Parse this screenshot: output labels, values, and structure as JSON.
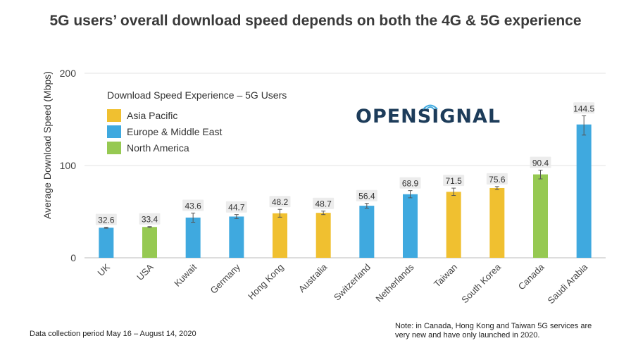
{
  "title": "5G users’ overall download speed depends on both the 4G & 5G experience",
  "footer_left": "Data collection period May 16 – August 14, 2020",
  "footer_right_line1": "Note: in Canada, Hong Kong and Taiwan 5G services are",
  "footer_right_line2": "very new and have only launched in 2020.",
  "logo_text": "OPENSIGNAL",
  "legend": {
    "title": "Download Speed Experience – 5G Users",
    "items": [
      {
        "label": "Asia Pacific",
        "color": "#F0C030"
      },
      {
        "label": "Europe & Middle East",
        "color": "#3FA9DF"
      },
      {
        "label": "North America",
        "color": "#96C952"
      }
    ]
  },
  "chart_data": {
    "type": "bar",
    "title": "5G users’ overall download speed depends on both the 4G & 5G experience",
    "ylabel": "Average Download Speed (Mbps)",
    "xlabel": "",
    "ylim": [
      0,
      200
    ],
    "yticks": [
      0,
      100,
      200
    ],
    "grid": true,
    "legend_position": "top-left",
    "categories": [
      "UK",
      "USA",
      "Kuwait",
      "Germany",
      "Hong Kong",
      "Australia",
      "Switzerland",
      "Netherlands",
      "Taiwan",
      "South Korea",
      "Canada",
      "Saudi Arabia"
    ],
    "values": [
      32.6,
      33.4,
      43.6,
      44.7,
      48.2,
      48.7,
      56.4,
      68.9,
      71.5,
      75.6,
      90.4,
      144.5
    ],
    "regions": [
      "Europe & Middle East",
      "North America",
      "Europe & Middle East",
      "Europe & Middle East",
      "Asia Pacific",
      "Asia Pacific",
      "Europe & Middle East",
      "Europe & Middle East",
      "Asia Pacific",
      "Asia Pacific",
      "North America",
      "Europe & Middle East"
    ],
    "error_low": [
      32.0,
      33.0,
      38.5,
      42.5,
      44.0,
      46.8,
      53.8,
      65.0,
      67.5,
      74.0,
      85.5,
      133.0
    ],
    "error_high": [
      33.2,
      33.8,
      48.5,
      46.8,
      52.5,
      50.6,
      59.0,
      72.8,
      75.5,
      77.2,
      95.0,
      154.0
    ]
  }
}
